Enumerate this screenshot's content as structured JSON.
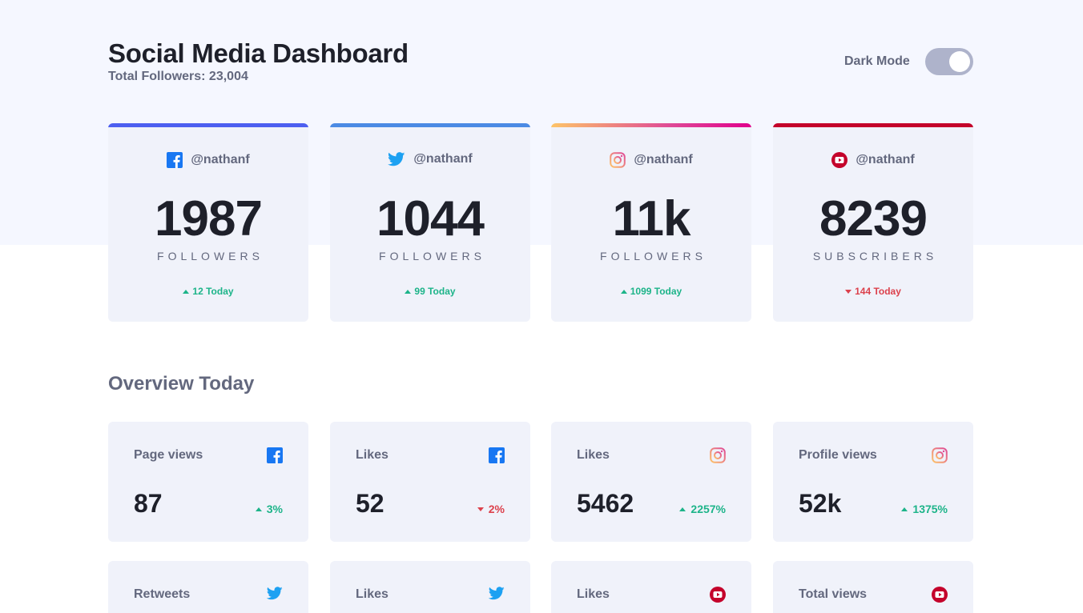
{
  "header": {
    "title": "Social Media Dashboard",
    "total_followers": "Total Followers: 23,004",
    "dark_mode_label": "Dark Mode"
  },
  "colors": {
    "facebook": "#1877f2",
    "twitter": "#1da1f2",
    "youtube": "#c4032b",
    "positive": "#1db489",
    "negative": "#dc414c"
  },
  "follower_cards": [
    {
      "platform": "facebook",
      "handle": "@nathanf",
      "count": "1987",
      "unit": "FOLLOWERS",
      "delta": "12 Today",
      "trend": "up"
    },
    {
      "platform": "twitter",
      "handle": "@nathanf",
      "count": "1044",
      "unit": "FOLLOWERS",
      "delta": "99 Today",
      "trend": "up"
    },
    {
      "platform": "instagram",
      "handle": "@nathanf",
      "count": "11k",
      "unit": "FOLLOWERS",
      "delta": "1099 Today",
      "trend": "up"
    },
    {
      "platform": "youtube",
      "handle": "@nathanf",
      "count": "8239",
      "unit": "SUBSCRIBERS",
      "delta": "144 Today",
      "trend": "down"
    }
  ],
  "overview": {
    "title": "Overview Today",
    "cards": [
      {
        "metric": "Page views",
        "platform": "facebook",
        "value": "87",
        "percent": "3%",
        "trend": "up"
      },
      {
        "metric": "Likes",
        "platform": "facebook",
        "value": "52",
        "percent": "2%",
        "trend": "down"
      },
      {
        "metric": "Likes",
        "platform": "instagram",
        "value": "5462",
        "percent": "2257%",
        "trend": "up"
      },
      {
        "metric": "Profile views",
        "platform": "instagram",
        "value": "52k",
        "percent": "1375%",
        "trend": "up"
      },
      {
        "metric": "Retweets",
        "platform": "twitter"
      },
      {
        "metric": "Likes",
        "platform": "twitter"
      },
      {
        "metric": "Likes",
        "platform": "youtube"
      },
      {
        "metric": "Total views",
        "platform": "youtube"
      }
    ]
  }
}
